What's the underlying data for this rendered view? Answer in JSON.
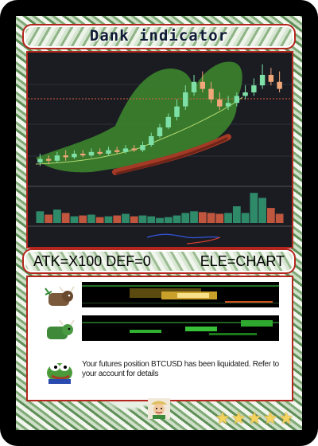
{
  "card": {
    "title": "Dank indicator",
    "stats_left": "ATK=X100 DEF=0",
    "stats_right": "ELE=CHART",
    "description": "Your futures position BTCUSD has been liquidated. Refer to your account for details",
    "rating": 5,
    "stars": [
      "★",
      "★",
      "★",
      "★",
      "★"
    ]
  },
  "icons": {
    "bull": "bull-icon",
    "bull_green": "green-bull-icon",
    "pepe": "pepe-frog-icon",
    "avatar": "miner-avatar-icon",
    "star": "star-icon"
  },
  "colors": {
    "frame": "#b3261e",
    "up_candle": "#7ee0a6",
    "down_candle": "#f2a77a",
    "volume_up": "#2f8a6a",
    "volume_down": "#c0563e",
    "star": "#f4d35e"
  },
  "chart_data": {
    "type": "candlestick",
    "candles": [
      {
        "o": 40,
        "c": 42,
        "h": 45,
        "l": 38
      },
      {
        "o": 42,
        "c": 41,
        "h": 44,
        "l": 39
      },
      {
        "o": 41,
        "c": 44,
        "h": 46,
        "l": 40
      },
      {
        "o": 44,
        "c": 43,
        "h": 47,
        "l": 41
      },
      {
        "o": 43,
        "c": 45,
        "h": 47,
        "l": 42
      },
      {
        "o": 45,
        "c": 44,
        "h": 47,
        "l": 43
      },
      {
        "o": 44,
        "c": 46,
        "h": 48,
        "l": 43
      },
      {
        "o": 46,
        "c": 45,
        "h": 48,
        "l": 44
      },
      {
        "o": 45,
        "c": 47,
        "h": 49,
        "l": 44
      },
      {
        "o": 47,
        "c": 46,
        "h": 49,
        "l": 45
      },
      {
        "o": 46,
        "c": 48,
        "h": 50,
        "l": 45
      },
      {
        "o": 48,
        "c": 47,
        "h": 50,
        "l": 46
      },
      {
        "o": 47,
        "c": 50,
        "h": 52,
        "l": 46
      },
      {
        "o": 50,
        "c": 55,
        "h": 57,
        "l": 49
      },
      {
        "o": 55,
        "c": 60,
        "h": 62,
        "l": 54
      },
      {
        "o": 60,
        "c": 66,
        "h": 68,
        "l": 59
      },
      {
        "o": 66,
        "c": 72,
        "h": 76,
        "l": 64
      },
      {
        "o": 72,
        "c": 80,
        "h": 84,
        "l": 70
      },
      {
        "o": 80,
        "c": 86,
        "h": 90,
        "l": 78
      },
      {
        "o": 86,
        "c": 82,
        "h": 92,
        "l": 80
      },
      {
        "o": 82,
        "c": 76,
        "h": 86,
        "l": 74
      },
      {
        "o": 76,
        "c": 72,
        "h": 80,
        "l": 70
      },
      {
        "o": 72,
        "c": 74,
        "h": 78,
        "l": 70
      },
      {
        "o": 74,
        "c": 78,
        "h": 80,
        "l": 72
      },
      {
        "o": 78,
        "c": 80,
        "h": 84,
        "l": 76
      },
      {
        "o": 80,
        "c": 84,
        "h": 88,
        "l": 78
      },
      {
        "o": 84,
        "c": 90,
        "h": 96,
        "l": 82
      },
      {
        "o": 90,
        "c": 86,
        "h": 94,
        "l": 84
      },
      {
        "o": 86,
        "c": 82,
        "h": 92,
        "l": 80
      }
    ],
    "volume": [
      14,
      10,
      16,
      12,
      8,
      9,
      10,
      7,
      8,
      9,
      11,
      8,
      9,
      8,
      6,
      7,
      9,
      12,
      14,
      13,
      12,
      11,
      12,
      20,
      12,
      36,
      30,
      18,
      11
    ],
    "ylim": [
      30,
      100
    ],
    "volume_max": 40
  }
}
